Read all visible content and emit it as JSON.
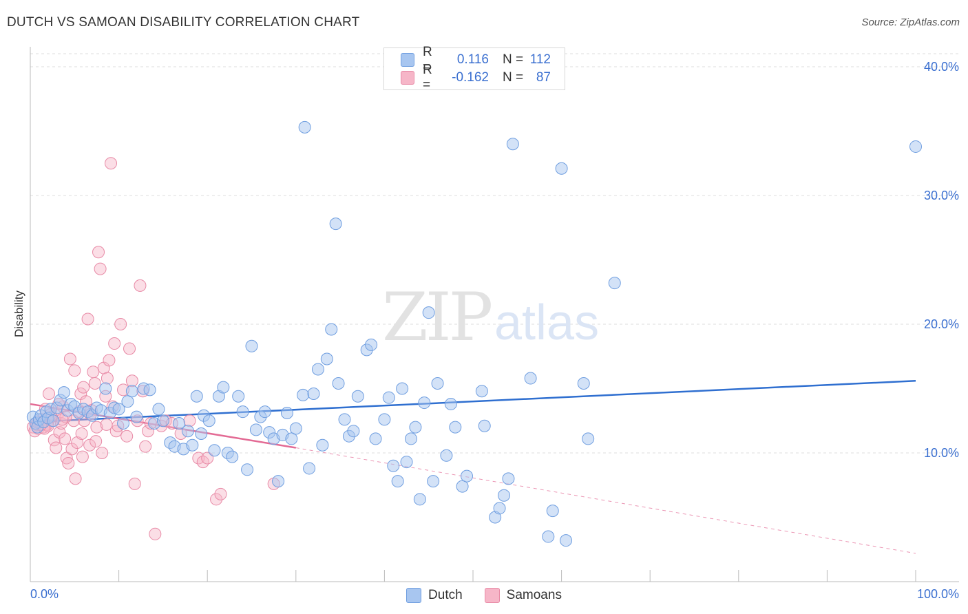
{
  "header": {
    "title": "DUTCH VS SAMOAN DISABILITY CORRELATION CHART",
    "source": "Source: ZipAtlas.com"
  },
  "watermark": {
    "zip": "ZIP",
    "atlas": "atlas"
  },
  "legend_top": {
    "rows": [
      {
        "r_label": "R =",
        "r_value": "0.116",
        "n_label": "N =",
        "n_value": "112"
      },
      {
        "r_label": "R =",
        "r_value": "-0.162",
        "n_label": "N =",
        "n_value": "87"
      }
    ]
  },
  "legend_bottom": {
    "series1": "Dutch",
    "series2": "Samoans"
  },
  "colors": {
    "dutch_fill": "#a8c6f0",
    "dutch_stroke": "#6f9ee0",
    "dutch_line": "#2f6fd0",
    "samoan_fill": "#f6b6c8",
    "samoan_stroke": "#e88aa6",
    "samoan_line": "#e36a94",
    "grid": "#dddddd",
    "tick_text": "#3a6fd0"
  },
  "chart_data": {
    "type": "scatter",
    "title": "DUTCH VS SAMOAN DISABILITY CORRELATION CHART",
    "xlabel": "",
    "ylabel": "Disability",
    "xlim": [
      0,
      100
    ],
    "ylim": [
      0,
      40
    ],
    "x_tick_labels": [
      "0.0%",
      "100.0%"
    ],
    "y_ticks": [
      10,
      20,
      30,
      40
    ],
    "y_tick_labels": [
      "10.0%",
      "20.0%",
      "30.0%",
      "40.0%"
    ],
    "grid": true,
    "legend_placement": "bottom-center",
    "series": [
      {
        "name": "Dutch",
        "r": 0.116,
        "n": 112,
        "trend": {
          "x": [
            0,
            100
          ],
          "y": [
            12.4,
            15.6
          ]
        },
        "points": [
          [
            0.3,
            12.8
          ],
          [
            0.6,
            12.3
          ],
          [
            0.8,
            12.0
          ],
          [
            1.0,
            12.6
          ],
          [
            1.2,
            12.9
          ],
          [
            1.5,
            12.4
          ],
          [
            1.8,
            13.2
          ],
          [
            2.0,
            12.7
          ],
          [
            2.3,
            13.4
          ],
          [
            2.6,
            12.5
          ],
          [
            3.0,
            13.5
          ],
          [
            3.4,
            14.1
          ],
          [
            3.8,
            14.7
          ],
          [
            4.2,
            13.3
          ],
          [
            4.6,
            13.8
          ],
          [
            5.0,
            13.6
          ],
          [
            5.5,
            13.1
          ],
          [
            6.0,
            13.4
          ],
          [
            6.5,
            13.2
          ],
          [
            7.0,
            12.9
          ],
          [
            7.5,
            13.5
          ],
          [
            8.0,
            13.3
          ],
          [
            8.5,
            15.0
          ],
          [
            9.0,
            13.1
          ],
          [
            9.5,
            13.5
          ],
          [
            10.0,
            13.4
          ],
          [
            10.5,
            12.3
          ],
          [
            11.0,
            14.0
          ],
          [
            11.5,
            14.8
          ],
          [
            12.0,
            12.8
          ],
          [
            12.8,
            15.0
          ],
          [
            13.5,
            14.9
          ],
          [
            14.0,
            12.3
          ],
          [
            14.5,
            13.4
          ],
          [
            15.0,
            12.5
          ],
          [
            15.8,
            10.8
          ],
          [
            16.3,
            10.5
          ],
          [
            16.8,
            12.3
          ],
          [
            17.3,
            10.3
          ],
          [
            17.8,
            11.7
          ],
          [
            18.3,
            10.6
          ],
          [
            18.8,
            14.4
          ],
          [
            19.3,
            11.5
          ],
          [
            19.6,
            12.9
          ],
          [
            20.2,
            12.5
          ],
          [
            20.8,
            10.2
          ],
          [
            21.3,
            14.4
          ],
          [
            21.8,
            15.1
          ],
          [
            22.3,
            10.0
          ],
          [
            22.8,
            9.7
          ],
          [
            23.5,
            14.4
          ],
          [
            24.0,
            13.2
          ],
          [
            24.5,
            8.7
          ],
          [
            25.0,
            18.3
          ],
          [
            25.5,
            11.8
          ],
          [
            26.0,
            12.8
          ],
          [
            26.5,
            13.2
          ],
          [
            27.0,
            11.6
          ],
          [
            27.5,
            11.1
          ],
          [
            28.0,
            7.8
          ],
          [
            28.5,
            11.4
          ],
          [
            29.0,
            13.1
          ],
          [
            29.5,
            11.1
          ],
          [
            30.0,
            11.9
          ],
          [
            30.8,
            14.5
          ],
          [
            31.5,
            8.8
          ],
          [
            31.0,
            35.3
          ],
          [
            32.0,
            14.6
          ],
          [
            32.5,
            16.5
          ],
          [
            33.0,
            10.6
          ],
          [
            33.5,
            17.3
          ],
          [
            34.0,
            19.6
          ],
          [
            34.5,
            27.8
          ],
          [
            34.8,
            15.4
          ],
          [
            35.5,
            12.6
          ],
          [
            36.0,
            11.3
          ],
          [
            36.5,
            11.7
          ],
          [
            37.0,
            14.4
          ],
          [
            38.0,
            18.0
          ],
          [
            38.5,
            18.4
          ],
          [
            39.0,
            11.1
          ],
          [
            40.0,
            12.6
          ],
          [
            40.5,
            14.3
          ],
          [
            41.0,
            9.0
          ],
          [
            41.5,
            7.8
          ],
          [
            42.0,
            15.0
          ],
          [
            42.5,
            9.3
          ],
          [
            43.0,
            11.1
          ],
          [
            43.5,
            12.0
          ],
          [
            44.0,
            6.4
          ],
          [
            44.5,
            13.9
          ],
          [
            45.0,
            20.9
          ],
          [
            45.5,
            7.8
          ],
          [
            46.0,
            15.4
          ],
          [
            47.0,
            9.8
          ],
          [
            47.5,
            13.8
          ],
          [
            48.0,
            12.0
          ],
          [
            48.8,
            7.4
          ],
          [
            49.3,
            8.2
          ],
          [
            51.0,
            14.8
          ],
          [
            51.3,
            12.1
          ],
          [
            52.5,
            5.0
          ],
          [
            53.0,
            5.7
          ],
          [
            53.5,
            6.7
          ],
          [
            54.0,
            8.0
          ],
          [
            54.5,
            34.0
          ],
          [
            56.5,
            15.8
          ],
          [
            58.5,
            3.5
          ],
          [
            59.0,
            5.5
          ],
          [
            60.0,
            32.1
          ],
          [
            60.5,
            3.2
          ],
          [
            62.5,
            15.4
          ],
          [
            63.0,
            11.1
          ],
          [
            66.0,
            23.2
          ],
          [
            100.0,
            33.8
          ]
        ]
      },
      {
        "name": "Samoans",
        "r": -0.162,
        "n": 87,
        "trend": {
          "x": [
            0,
            30
          ],
          "y": [
            13.8,
            10.4
          ]
        },
        "trend_dashed": {
          "x": [
            30,
            100
          ],
          "y": [
            10.4,
            2.2
          ]
        },
        "points": [
          [
            0.3,
            12.0
          ],
          [
            0.5,
            11.7
          ],
          [
            0.7,
            12.2
          ],
          [
            0.9,
            11.9
          ],
          [
            1.1,
            12.4
          ],
          [
            1.3,
            12.6
          ],
          [
            1.5,
            12.0
          ],
          [
            1.7,
            13.4
          ],
          [
            1.9,
            12.2
          ],
          [
            2.1,
            14.6
          ],
          [
            2.3,
            13.0
          ],
          [
            2.5,
            12.5
          ],
          [
            2.7,
            11.0
          ],
          [
            2.9,
            10.4
          ],
          [
            3.1,
            13.0
          ],
          [
            3.3,
            11.6
          ],
          [
            3.5,
            12.3
          ],
          [
            3.7,
            13.6
          ],
          [
            3.9,
            11.1
          ],
          [
            4.1,
            9.6
          ],
          [
            4.3,
            9.2
          ],
          [
            4.5,
            17.3
          ],
          [
            4.7,
            10.3
          ],
          [
            4.9,
            12.5
          ],
          [
            5.1,
            8.0
          ],
          [
            5.3,
            10.8
          ],
          [
            5.5,
            13.2
          ],
          [
            5.7,
            14.6
          ],
          [
            5.9,
            9.7
          ],
          [
            6.1,
            12.5
          ],
          [
            6.3,
            14.0
          ],
          [
            6.5,
            20.4
          ],
          [
            6.7,
            10.6
          ],
          [
            6.9,
            13.3
          ],
          [
            7.1,
            16.3
          ],
          [
            7.3,
            15.4
          ],
          [
            7.5,
            12.0
          ],
          [
            7.7,
            25.6
          ],
          [
            7.9,
            24.3
          ],
          [
            8.1,
            10.0
          ],
          [
            8.3,
            16.6
          ],
          [
            8.5,
            14.4
          ],
          [
            8.7,
            15.8
          ],
          [
            8.9,
            17.2
          ],
          [
            9.1,
            32.5
          ],
          [
            9.3,
            13.6
          ],
          [
            9.5,
            18.5
          ],
          [
            9.7,
            11.7
          ],
          [
            9.9,
            12.1
          ],
          [
            10.2,
            20.0
          ],
          [
            10.5,
            14.9
          ],
          [
            10.9,
            11.3
          ],
          [
            11.2,
            18.1
          ],
          [
            11.5,
            15.6
          ],
          [
            11.8,
            7.6
          ],
          [
            12.1,
            12.5
          ],
          [
            12.4,
            23.0
          ],
          [
            12.7,
            14.8
          ],
          [
            13.0,
            10.5
          ],
          [
            13.3,
            11.7
          ],
          [
            13.6,
            12.3
          ],
          [
            14.1,
            3.7
          ],
          [
            14.8,
            12.1
          ],
          [
            15.3,
            12.5
          ],
          [
            16.0,
            12.3
          ],
          [
            17.0,
            11.5
          ],
          [
            18.0,
            12.5
          ],
          [
            19.0,
            9.6
          ],
          [
            19.5,
            9.3
          ],
          [
            20.0,
            9.6
          ],
          [
            21.0,
            6.4
          ],
          [
            21.5,
            6.8
          ],
          [
            27.5,
            7.6
          ],
          [
            3.2,
            13.8
          ],
          [
            5.0,
            16.4
          ],
          [
            6.0,
            15.1
          ],
          [
            4.0,
            12.8
          ],
          [
            2.0,
            12.1
          ],
          [
            1.6,
            11.9
          ],
          [
            3.6,
            12.6
          ],
          [
            2.4,
            12.8
          ],
          [
            1.2,
            12.2
          ],
          [
            0.8,
            12.4
          ],
          [
            6.8,
            13.0
          ],
          [
            8.6,
            12.2
          ],
          [
            5.8,
            11.5
          ],
          [
            7.4,
            10.9
          ]
        ]
      }
    ]
  }
}
